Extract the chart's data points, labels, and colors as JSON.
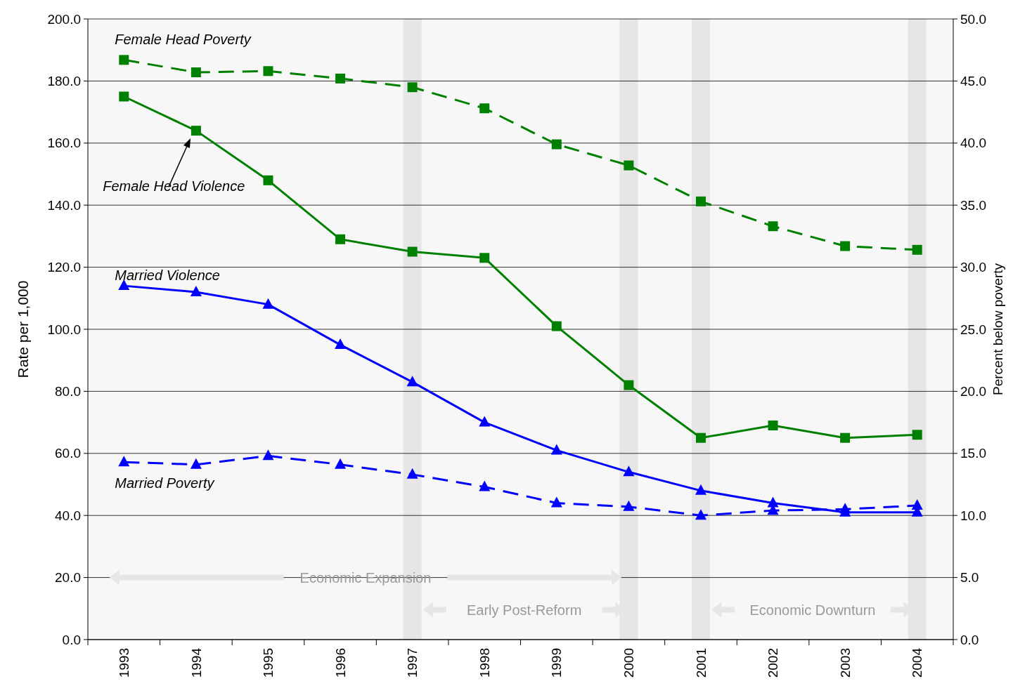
{
  "chart_data": {
    "type": "line",
    "ylabel": "Rate per 1,000",
    "y2label": "Percent below poverty",
    "categories": [
      "1993",
      "1994",
      "1995",
      "1996",
      "1997",
      "1998",
      "1999",
      "2000",
      "2001",
      "2002",
      "2003",
      "2004"
    ],
    "ylim": [
      0,
      200
    ],
    "yticks": [
      {
        "value": 0,
        "label": "0.0"
      },
      {
        "value": 20,
        "label": "20.0"
      },
      {
        "value": 40,
        "label": "40.0"
      },
      {
        "value": 60,
        "label": "60.0"
      },
      {
        "value": 80,
        "label": "80.0"
      },
      {
        "value": 100,
        "label": "100.0"
      },
      {
        "value": 120,
        "label": "120.0"
      },
      {
        "value": 140,
        "label": "140.0"
      },
      {
        "value": 160,
        "label": "160.0"
      },
      {
        "value": 180,
        "label": "180.0"
      },
      {
        "value": 200,
        "label": "200.0"
      }
    ],
    "y2lim": [
      0,
      50
    ],
    "y2ticks": [
      {
        "value": 0,
        "label": "0.0"
      },
      {
        "value": 5,
        "label": "5.0"
      },
      {
        "value": 10,
        "label": "10.0"
      },
      {
        "value": 15,
        "label": "15.0"
      },
      {
        "value": 20,
        "label": "20.0"
      },
      {
        "value": 25,
        "label": "25.0"
      },
      {
        "value": 30,
        "label": "30.0"
      },
      {
        "value": 35,
        "label": "35.0"
      },
      {
        "value": 40,
        "label": "40.0"
      },
      {
        "value": 45,
        "label": "45.0"
      },
      {
        "value": 50,
        "label": "50.0"
      }
    ],
    "grid": "y",
    "series": [
      {
        "name": "Female Head Poverty",
        "color": "#008000",
        "axis": "y2",
        "marker": "square",
        "line_style": "dashed",
        "values": [
          46.7,
          45.7,
          45.8,
          45.2,
          44.5,
          42.8,
          39.9,
          38.2,
          35.3,
          33.3,
          31.7,
          31.4
        ]
      },
      {
        "name": "Female Head Violence",
        "color": "#008000",
        "marker": "square",
        "line_style": "solid",
        "values": [
          175,
          164,
          148,
          129,
          125,
          123,
          101,
          82,
          65,
          69,
          65,
          66
        ]
      },
      {
        "name": "Married Violence",
        "color": "#0000ff",
        "marker": "triangle",
        "line_style": "solid",
        "values": [
          114,
          112,
          108,
          95,
          83,
          70,
          61,
          54,
          48,
          44,
          41,
          41
        ]
      },
      {
        "name": "Married Poverty",
        "color": "#0000ff",
        "axis": "y2",
        "marker": "triangle",
        "line_style": "dashed",
        "values": [
          14.3,
          14.1,
          14.8,
          14.1,
          13.3,
          12.3,
          11.0,
          10.7,
          10.0,
          10.4,
          10.5,
          10.8
        ]
      }
    ],
    "ref_lines": [
      {
        "axis": "x",
        "value": "1997",
        "color": "#e6e6e6"
      },
      {
        "axis": "x",
        "value": "2000",
        "color": "#e6e6e6"
      },
      {
        "axis": "x",
        "value": "2001",
        "color": "#e6e6e6"
      },
      {
        "axis": "x",
        "value": "2004",
        "color": "#e6e6e6"
      }
    ],
    "annotations": [
      "Economic Expansion",
      "Early Post-Reform",
      "Economic Downturn"
    ]
  }
}
